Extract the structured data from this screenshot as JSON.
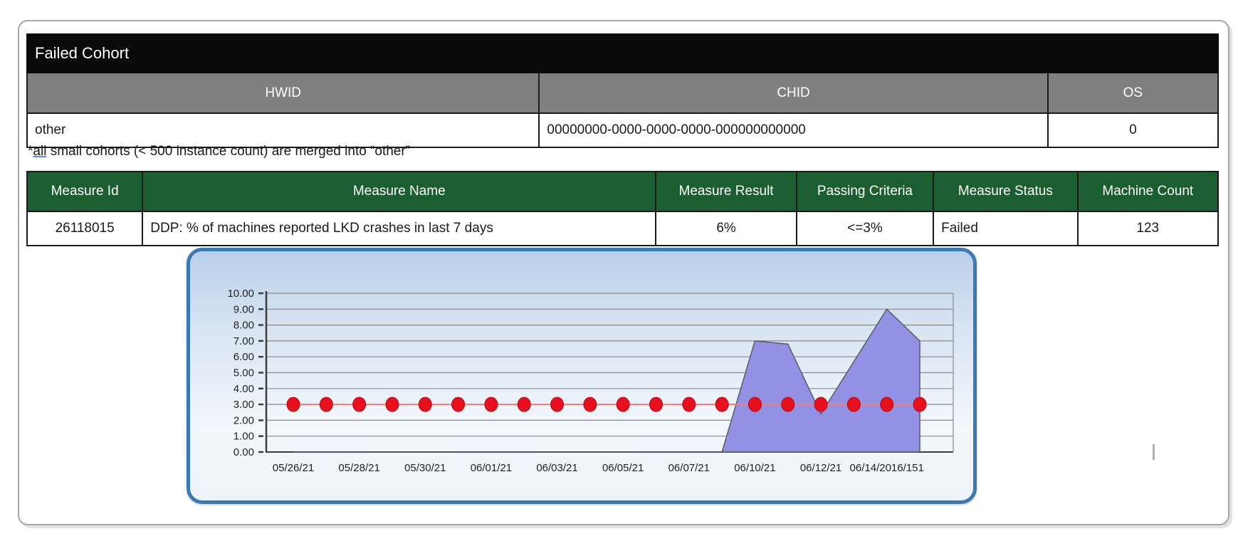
{
  "page": {
    "failed_cohort_table": {
      "title": "Failed Cohort",
      "columns": [
        "HWID",
        "CHID",
        "OS"
      ],
      "row": {
        "hwid": "other",
        "chid": "00000000-0000-0000-0000-000000000000",
        "os": "0"
      }
    },
    "note": {
      "star": "*",
      "underlined": "all",
      "rest": " small cohorts (< 500 instance count) are merged into “other”"
    },
    "measures_table": {
      "columns": [
        "Measure Id",
        "Measure Name",
        "Measure Result",
        "Passing Criteria",
        "Measure Status",
        "Machine Count"
      ],
      "row": {
        "measure_id": "26118015",
        "measure_name": "DDP: % of machines reported LKD crashes in last 7 days",
        "measure_result": "6%",
        "passing_criteria": "<=3%",
        "measure_status": "Failed",
        "machine_count": "123"
      }
    }
  },
  "chart_data": {
    "type": "area",
    "title": "",
    "xlabel": "",
    "ylabel": "",
    "ylim": [
      0,
      10
    ],
    "ytick_step": 1.0,
    "ytick_labels": [
      "10.00",
      "9.00",
      "8.00",
      "7.00",
      "6.00",
      "5.00",
      "4.00",
      "3.00",
      "2.00",
      "1.00",
      "0.00"
    ],
    "x_tick_labels": [
      "05/26/21",
      "05/28/21",
      "05/30/21",
      "06/01/21",
      "06/03/21",
      "06/05/21",
      "06/07/21",
      "06/10/21",
      "06/12/21",
      "06/14/2016/151"
    ],
    "grid": true,
    "legend": "none",
    "series": [
      {
        "name": "measure-result-area",
        "type": "area",
        "color": "#9391e4",
        "values": [
          0,
          0,
          0,
          0,
          0,
          0,
          0,
          0,
          0,
          0,
          0,
          0,
          0,
          0,
          7.0,
          6.8,
          2.4,
          5.7,
          9.0,
          7.0
        ]
      },
      {
        "name": "passing-criteria-line",
        "type": "line-with-markers",
        "color": "#e8101c",
        "line_color": "#f57b7b",
        "values": [
          3,
          3,
          3,
          3,
          3,
          3,
          3,
          3,
          3,
          3,
          3,
          3,
          3,
          3,
          3,
          3,
          3,
          3,
          3,
          3
        ]
      }
    ]
  }
}
